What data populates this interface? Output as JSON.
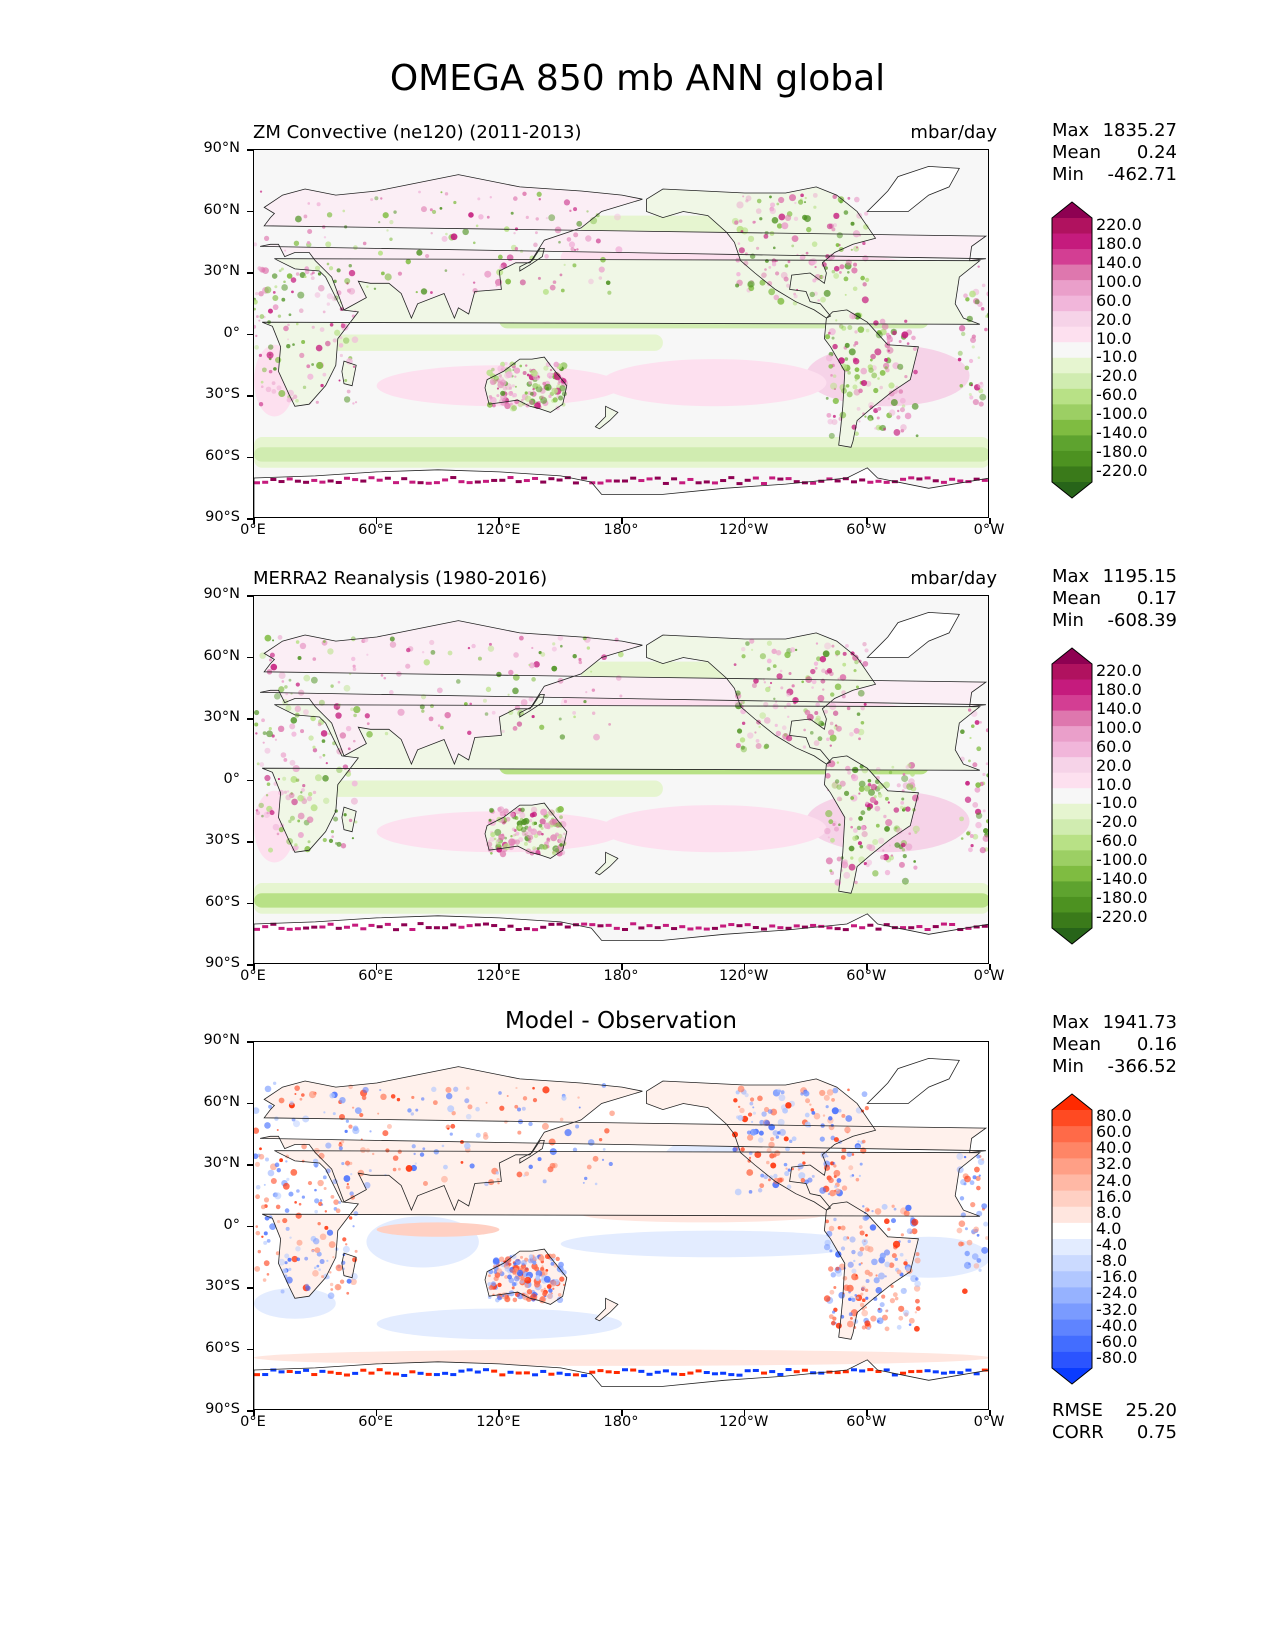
{
  "title": "OMEGA 850 mb ANN global",
  "lat_labels": [
    "90°N",
    "60°N",
    "30°N",
    "0°",
    "30°S",
    "60°S",
    "90°S"
  ],
  "lon_labels": [
    "0°E",
    "60°E",
    "120°E",
    "180°",
    "120°W",
    "60°W",
    "0°W"
  ],
  "panels": [
    {
      "id": "test",
      "title_left": "ZM Convective (ne120) (2011-2013)",
      "title_right": "mbar/day",
      "stats": {
        "max_label": "Max",
        "max": "1835.27",
        "mean_label": "Mean",
        "mean": "0.24",
        "min_label": "Min",
        "min": "-462.71"
      },
      "colorbar_labels": [
        "220.0",
        "180.0",
        "140.0",
        "100.0",
        "60.0",
        "20.0",
        "10.0",
        "-10.0",
        "-20.0",
        "-60.0",
        "-100.0",
        "-140.0",
        "-180.0",
        "-220.0"
      ],
      "colorbar_colors": [
        "#8e0152",
        "#b0125f",
        "#c51b7d",
        "#d33e93",
        "#de77ae",
        "#ea9fca",
        "#f1b6da",
        "#f6d3e8",
        "#fde0ef",
        "#f7f7f7",
        "#e6f5d0",
        "#d0ecb0",
        "#b8e186",
        "#9ccf64",
        "#7fbc41",
        "#5ea32f",
        "#4d9221",
        "#3a7a1a",
        "#276419"
      ]
    },
    {
      "id": "ref",
      "title_left": "MERRA2 Reanalysis (1980-2016)",
      "title_right": "mbar/day",
      "stats": {
        "max_label": "Max",
        "max": "1195.15",
        "mean_label": "Mean",
        "mean": "0.17",
        "min_label": "Min",
        "min": "-608.39"
      },
      "colorbar_labels": [
        "220.0",
        "180.0",
        "140.0",
        "100.0",
        "60.0",
        "20.0",
        "10.0",
        "-10.0",
        "-20.0",
        "-60.0",
        "-100.0",
        "-140.0",
        "-180.0",
        "-220.0"
      ],
      "colorbar_colors": [
        "#8e0152",
        "#b0125f",
        "#c51b7d",
        "#d33e93",
        "#de77ae",
        "#ea9fca",
        "#f1b6da",
        "#f6d3e8",
        "#fde0ef",
        "#f7f7f7",
        "#e6f5d0",
        "#d0ecb0",
        "#b8e186",
        "#9ccf64",
        "#7fbc41",
        "#5ea32f",
        "#4d9221",
        "#3a7a1a",
        "#276419"
      ]
    },
    {
      "id": "diff",
      "title_center": "Model - Observation",
      "stats": {
        "max_label": "Max",
        "max": "1941.73",
        "mean_label": "Mean",
        "mean": "0.16",
        "min_label": "Min",
        "min": "-366.52"
      },
      "colorbar_labels": [
        "80.0",
        "60.0",
        "40.0",
        "32.0",
        "24.0",
        "16.0",
        "8.0",
        "4.0",
        "-4.0",
        "-8.0",
        "-16.0",
        "-24.0",
        "-32.0",
        "-40.0",
        "-60.0",
        "-80.0"
      ],
      "colorbar_colors": [
        "#ff2a00",
        "#ff4a22",
        "#ff6a48",
        "#ff8566",
        "#ff9f86",
        "#ffb8a5",
        "#ffd0c3",
        "#ffe6df",
        "#ffffff",
        "#e3ecff",
        "#cbdaff",
        "#b1c7ff",
        "#96b2ff",
        "#7a9bff",
        "#5f84ff",
        "#436dff",
        "#2b54ff",
        "#0a3cff"
      ],
      "metrics": {
        "rmse_label": "RMSE",
        "rmse": "25.20",
        "corr_label": "CORR",
        "corr": "0.75"
      }
    }
  ],
  "chart_data": [
    {
      "type": "heatmap",
      "title": "ZM Convective (ne120) (2011-2013)",
      "units": "mbar/day",
      "field": "OMEGA 850 mb ANN",
      "xlim": [
        0,
        360
      ],
      "ylim": [
        -90,
        90
      ],
      "contour_levels": [
        -220,
        -180,
        -140,
        -100,
        -60,
        -20,
        -10,
        10,
        20,
        60,
        100,
        140,
        180,
        220
      ],
      "max": 1835.27,
      "mean": 0.24,
      "min": -462.71
    },
    {
      "type": "heatmap",
      "title": "MERRA2 Reanalysis (1980-2016)",
      "units": "mbar/day",
      "field": "OMEGA 850 mb ANN",
      "xlim": [
        0,
        360
      ],
      "ylim": [
        -90,
        90
      ],
      "contour_levels": [
        -220,
        -180,
        -140,
        -100,
        -60,
        -20,
        -10,
        10,
        20,
        60,
        100,
        140,
        180,
        220
      ],
      "max": 1195.15,
      "mean": 0.17,
      "min": -608.39
    },
    {
      "type": "heatmap",
      "title": "Model - Observation",
      "units": "mbar/day",
      "xlim": [
        0,
        360
      ],
      "ylim": [
        -90,
        90
      ],
      "contour_levels": [
        -80,
        -60,
        -40,
        -32,
        -24,
        -16,
        -8,
        -4,
        4,
        8,
        16,
        24,
        32,
        40,
        60,
        80
      ],
      "max": 1941.73,
      "mean": 0.16,
      "min": -366.52,
      "rmse": 25.2,
      "corr": 0.75
    }
  ]
}
